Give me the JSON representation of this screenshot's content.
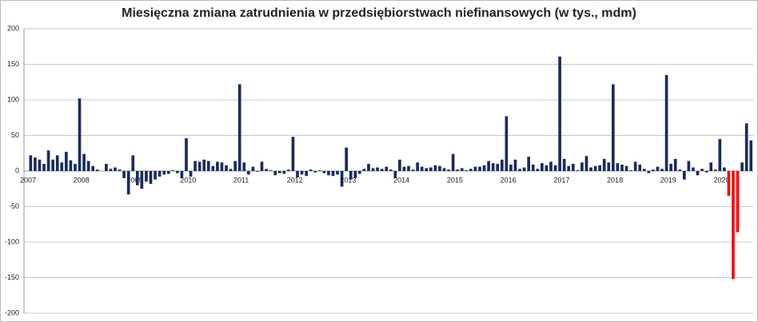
{
  "chart_data": {
    "type": "bar",
    "title": "Miesięczna zmiana zatrudnienia w przedsiębiorstwach niefinansowych (w tys., mdm)",
    "categories": [
      "2007",
      null,
      null,
      null,
      null,
      null,
      null,
      null,
      null,
      null,
      null,
      null,
      "2008",
      null,
      null,
      null,
      null,
      null,
      null,
      null,
      null,
      null,
      null,
      null,
      "2009",
      null,
      null,
      null,
      null,
      null,
      null,
      null,
      null,
      null,
      null,
      null,
      "2010",
      null,
      null,
      null,
      null,
      null,
      null,
      null,
      null,
      null,
      null,
      null,
      "2011",
      null,
      null,
      null,
      null,
      null,
      null,
      null,
      null,
      null,
      null,
      null,
      "2012",
      null,
      null,
      null,
      null,
      null,
      null,
      null,
      null,
      null,
      null,
      null,
      "2013",
      null,
      null,
      null,
      null,
      null,
      null,
      null,
      null,
      null,
      null,
      null,
      "2014",
      null,
      null,
      null,
      null,
      null,
      null,
      null,
      null,
      null,
      null,
      null,
      "2015",
      null,
      null,
      null,
      null,
      null,
      null,
      null,
      null,
      null,
      null,
      null,
      "2016",
      null,
      null,
      null,
      null,
      null,
      null,
      null,
      null,
      null,
      null,
      null,
      "2017",
      null,
      null,
      null,
      null,
      null,
      null,
      null,
      null,
      null,
      null,
      null,
      "2018",
      null,
      null,
      null,
      null,
      null,
      null,
      null,
      null,
      null,
      null,
      null,
      "2019",
      null,
      null,
      null,
      null,
      null,
      null,
      null,
      null,
      null,
      null,
      null,
      "2020",
      null,
      null,
      null,
      null,
      null,
      null,
      null
    ],
    "values": [
      null,
      22,
      19,
      16,
      10,
      29,
      16,
      22,
      12,
      27,
      15,
      10,
      102,
      24,
      14,
      7,
      2,
      0,
      10,
      3,
      5,
      2,
      -10,
      -33,
      22,
      -20,
      -25,
      -15,
      -18,
      -12,
      -8,
      -5,
      -4,
      1,
      -3,
      -10,
      46,
      -8,
      14,
      13,
      16,
      14,
      7,
      13,
      12,
      8,
      3,
      14,
      122,
      12,
      -5,
      6,
      -1,
      13,
      3,
      1,
      -6,
      -3,
      -4,
      2,
      48,
      -9,
      -5,
      -7,
      2,
      -2,
      1,
      -3,
      -6,
      -7,
      -5,
      -22,
      33,
      -12,
      -10,
      -4,
      3,
      10,
      4,
      5,
      3,
      6,
      2,
      -10,
      16,
      6,
      7,
      2,
      12,
      6,
      4,
      5,
      8,
      7,
      4,
      2,
      24,
      2,
      4,
      1,
      3,
      6,
      6,
      8,
      14,
      11,
      10,
      16,
      77,
      9,
      16,
      3,
      5,
      20,
      9,
      3,
      11,
      8,
      13,
      8,
      161,
      17,
      7,
      10,
      1,
      12,
      21,
      5,
      7,
      8,
      17,
      12,
      122,
      11,
      9,
      7,
      1,
      13,
      9,
      3,
      -3,
      2,
      6,
      3,
      135,
      10,
      17,
      2,
      -12,
      14,
      5,
      -6,
      3,
      -2,
      12,
      2,
      45,
      5,
      -35,
      -152,
      -86,
      12,
      67,
      43
    ],
    "colors": [
      "#172c5e",
      "#172c5e",
      "#172c5e",
      "#172c5e",
      "#172c5e",
      "#172c5e",
      "#172c5e",
      "#172c5e",
      "#172c5e",
      "#172c5e",
      "#172c5e",
      "#172c5e",
      "#172c5e",
      "#172c5e",
      "#172c5e",
      "#172c5e",
      "#172c5e",
      "#172c5e",
      "#172c5e",
      "#172c5e",
      "#172c5e",
      "#172c5e",
      "#172c5e",
      "#172c5e",
      "#172c5e",
      "#172c5e",
      "#172c5e",
      "#172c5e",
      "#172c5e",
      "#172c5e",
      "#172c5e",
      "#172c5e",
      "#172c5e",
      "#172c5e",
      "#172c5e",
      "#172c5e",
      "#172c5e",
      "#172c5e",
      "#172c5e",
      "#172c5e",
      "#172c5e",
      "#172c5e",
      "#172c5e",
      "#172c5e",
      "#172c5e",
      "#172c5e",
      "#172c5e",
      "#172c5e",
      "#172c5e",
      "#172c5e",
      "#172c5e",
      "#172c5e",
      "#172c5e",
      "#172c5e",
      "#172c5e",
      "#172c5e",
      "#172c5e",
      "#172c5e",
      "#172c5e",
      "#172c5e",
      "#172c5e",
      "#172c5e",
      "#172c5e",
      "#172c5e",
      "#172c5e",
      "#172c5e",
      "#172c5e",
      "#172c5e",
      "#172c5e",
      "#172c5e",
      "#172c5e",
      "#172c5e",
      "#172c5e",
      "#172c5e",
      "#172c5e",
      "#172c5e",
      "#172c5e",
      "#172c5e",
      "#172c5e",
      "#172c5e",
      "#172c5e",
      "#172c5e",
      "#172c5e",
      "#172c5e",
      "#172c5e",
      "#172c5e",
      "#172c5e",
      "#172c5e",
      "#172c5e",
      "#172c5e",
      "#172c5e",
      "#172c5e",
      "#172c5e",
      "#172c5e",
      "#172c5e",
      "#172c5e",
      "#172c5e",
      "#172c5e",
      "#172c5e",
      "#172c5e",
      "#172c5e",
      "#172c5e",
      "#172c5e",
      "#172c5e",
      "#172c5e",
      "#172c5e",
      "#172c5e",
      "#172c5e",
      "#172c5e",
      "#172c5e",
      "#172c5e",
      "#172c5e",
      "#172c5e",
      "#172c5e",
      "#172c5e",
      "#172c5e",
      "#172c5e",
      "#172c5e",
      "#172c5e",
      "#172c5e",
      "#172c5e",
      "#172c5e",
      "#172c5e",
      "#172c5e",
      "#172c5e",
      "#172c5e",
      "#172c5e",
      "#172c5e",
      "#172c5e",
      "#172c5e",
      "#172c5e",
      "#172c5e",
      "#172c5e",
      "#172c5e",
      "#172c5e",
      "#172c5e",
      "#172c5e",
      "#172c5e",
      "#172c5e",
      "#172c5e",
      "#172c5e",
      "#172c5e",
      "#172c5e",
      "#172c5e",
      "#172c5e",
      "#172c5e",
      "#172c5e",
      "#172c5e",
      "#172c5e",
      "#172c5e",
      "#172c5e",
      "#172c5e",
      "#172c5e",
      "#172c5e",
      "#172c5e",
      "#172c5e",
      "#172c5e",
      "#172c5e",
      "#ff0000",
      "#ff0000",
      "#ff0000",
      "#172c5e",
      "#172c5e",
      "#172c5e"
    ],
    "ylim": [
      -200,
      200
    ],
    "yticks": [
      -200,
      -150,
      -100,
      -50,
      0,
      50,
      100,
      150,
      200
    ],
    "grid": true
  }
}
